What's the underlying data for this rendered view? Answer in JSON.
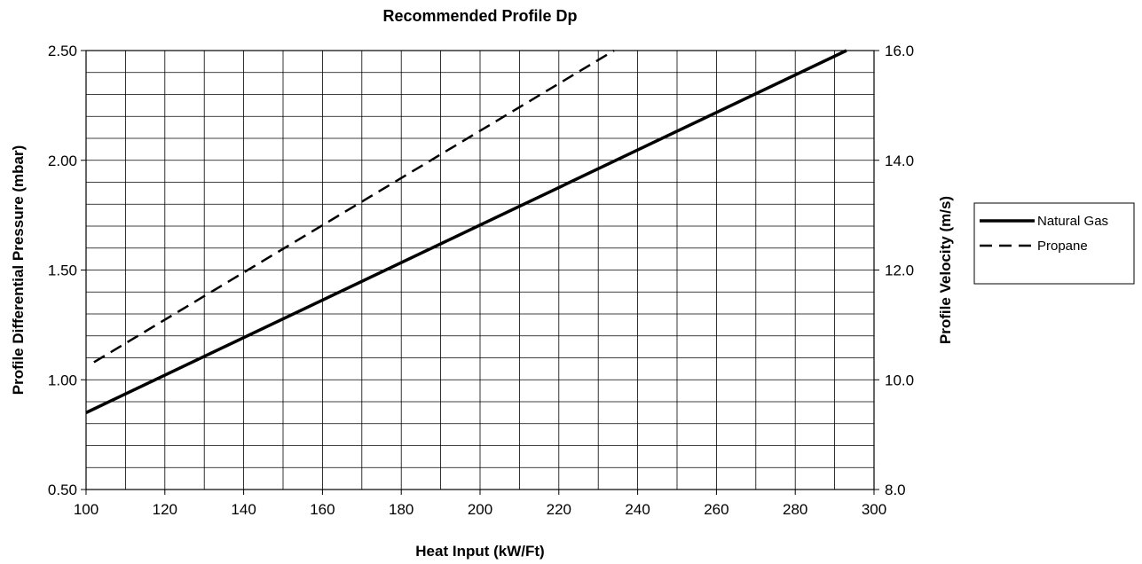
{
  "chart_data": {
    "type": "line",
    "title": "Recommended Profile Dp",
    "xlabel": "Heat Input (kW/Ft)",
    "ylabel": "Profile Differential Pressure (mbar)",
    "y2label": "Profile Velocity (m/s)",
    "xlim": [
      100,
      300
    ],
    "ylim": [
      0.5,
      2.5
    ],
    "y2lim": [
      8.0,
      16.0
    ],
    "x_ticks": [
      "100",
      "120",
      "140",
      "160",
      "180",
      "200",
      "220",
      "240",
      "260",
      "280",
      "300"
    ],
    "y_ticks": [
      "0.50",
      "1.00",
      "1.50",
      "2.00",
      "2.50"
    ],
    "y2_ticks": [
      "8.0",
      "10.0",
      "12.0",
      "14.0",
      "16.0"
    ],
    "grid": true,
    "x_minor_step": 10,
    "y_minor_step": 0.1,
    "legend_position": "right",
    "series": [
      {
        "name": "Natural Gas",
        "style": "solid",
        "color": "#000000",
        "x": [
          100,
          293
        ],
        "y": [
          0.85,
          2.5
        ]
      },
      {
        "name": "Propane",
        "style": "dashed",
        "color": "#000000",
        "x": [
          102,
          234
        ],
        "y": [
          1.08,
          2.5
        ]
      }
    ]
  }
}
